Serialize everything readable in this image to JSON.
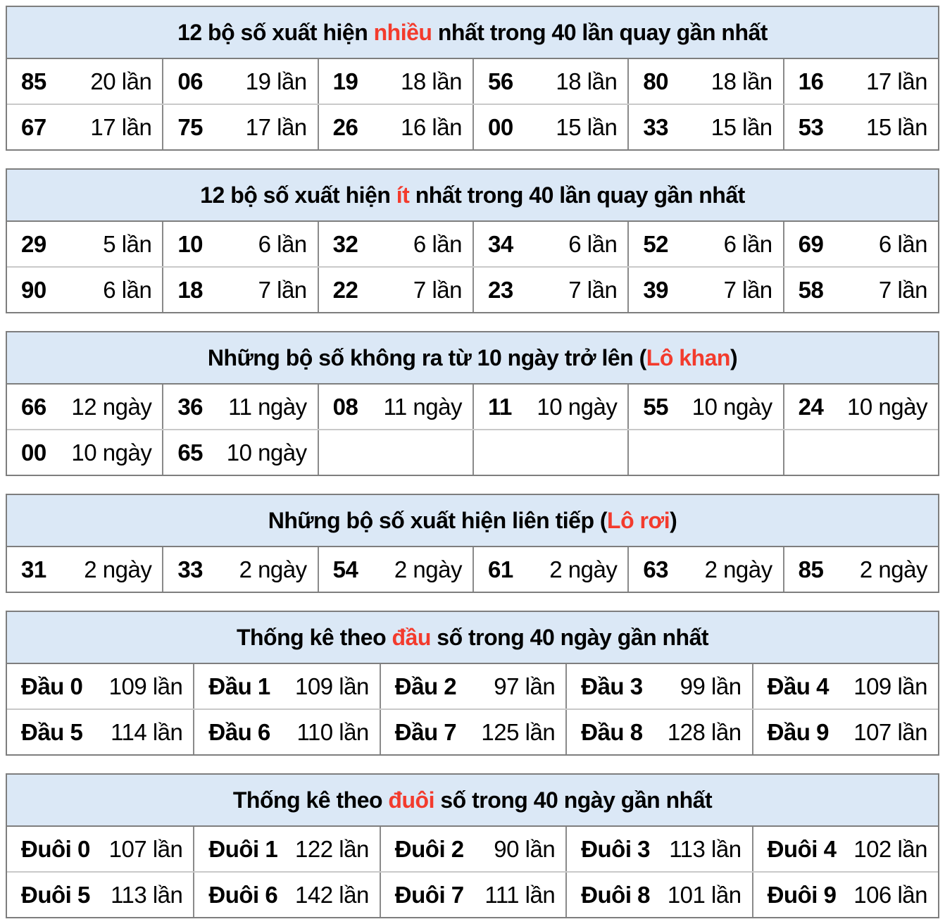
{
  "colors": {
    "header_bg": "#dbe8f6",
    "red_accent": "#f33b2d",
    "border_dark": "#7e7e7e",
    "border_mid": "#8a8a8a",
    "border_light": "#c9c9c9",
    "text": "#000000"
  },
  "tables": [
    {
      "name": "most-frequent",
      "title": {
        "pre": "12 bộ số xuất hiện ",
        "red": "nhiều",
        "post": " nhất trong 40 lần quay gần nhất"
      },
      "rows": [
        [
          {
            "label": "85",
            "value": "20 lần"
          },
          {
            "label": "06",
            "value": "19 lần"
          },
          {
            "label": "19",
            "value": "18 lần"
          },
          {
            "label": "56",
            "value": "18 lần"
          },
          {
            "label": "80",
            "value": "18 lần"
          },
          {
            "label": "16",
            "value": "17 lần"
          }
        ],
        [
          {
            "label": "67",
            "value": "17 lần"
          },
          {
            "label": "75",
            "value": "17 lần"
          },
          {
            "label": "26",
            "value": "16 lần"
          },
          {
            "label": "00",
            "value": "15 lần"
          },
          {
            "label": "33",
            "value": "15 lần"
          },
          {
            "label": "53",
            "value": "15 lần"
          }
        ]
      ]
    },
    {
      "name": "least-frequent",
      "title": {
        "pre": "12 bộ số xuất hiện ",
        "red": "ít",
        "post": " nhất trong 40 lần quay gần nhất"
      },
      "rows": [
        [
          {
            "label": "29",
            "value": "5 lần"
          },
          {
            "label": "10",
            "value": "6 lần"
          },
          {
            "label": "32",
            "value": "6 lần"
          },
          {
            "label": "34",
            "value": "6 lần"
          },
          {
            "label": "52",
            "value": "6 lần"
          },
          {
            "label": "69",
            "value": "6 lần"
          }
        ],
        [
          {
            "label": "90",
            "value": "6 lần"
          },
          {
            "label": "18",
            "value": "7 lần"
          },
          {
            "label": "22",
            "value": "7 lần"
          },
          {
            "label": "23",
            "value": "7 lần"
          },
          {
            "label": "39",
            "value": "7 lần"
          },
          {
            "label": "58",
            "value": "7 lần"
          }
        ]
      ]
    },
    {
      "name": "lo-khan",
      "title": {
        "pre": "Những bộ số không ra từ 10 ngày trở lên (",
        "red": "Lô khan",
        "post": ")"
      },
      "rows": [
        [
          {
            "label": "66",
            "value": "12 ngày"
          },
          {
            "label": "36",
            "value": "11 ngày"
          },
          {
            "label": "08",
            "value": "11 ngày"
          },
          {
            "label": "11",
            "value": "10 ngày"
          },
          {
            "label": "55",
            "value": "10 ngày"
          },
          {
            "label": "24",
            "value": "10 ngày"
          }
        ],
        [
          {
            "label": "00",
            "value": "10 ngày"
          },
          {
            "label": "65",
            "value": "10 ngày"
          },
          {
            "label": "",
            "value": ""
          },
          {
            "label": "",
            "value": ""
          },
          {
            "label": "",
            "value": ""
          },
          {
            "label": "",
            "value": ""
          }
        ]
      ]
    },
    {
      "name": "lo-roi",
      "title": {
        "pre": "Những bộ số xuất hiện liên tiếp (",
        "red": "Lô rơi",
        "post": ")"
      },
      "rows": [
        [
          {
            "label": "31",
            "value": "2 ngày"
          },
          {
            "label": "33",
            "value": "2 ngày"
          },
          {
            "label": "54",
            "value": "2 ngày"
          },
          {
            "label": "61",
            "value": "2 ngày"
          },
          {
            "label": "63",
            "value": "2 ngày"
          },
          {
            "label": "85",
            "value": "2 ngày"
          }
        ]
      ]
    },
    {
      "name": "dau-stats",
      "title": {
        "pre": "Thống kê theo ",
        "red": "đầu",
        "post": " số trong 40 ngày gần nhất"
      },
      "rows": [
        [
          {
            "label": "Đầu 0",
            "value": "109 lần"
          },
          {
            "label": "Đầu 1",
            "value": "109 lần"
          },
          {
            "label": "Đầu 2",
            "value": "97 lần"
          },
          {
            "label": "Đầu 3",
            "value": "99 lần"
          },
          {
            "label": "Đầu 4",
            "value": "109 lần"
          }
        ],
        [
          {
            "label": "Đầu 5",
            "value": "114 lần"
          },
          {
            "label": "Đầu 6",
            "value": "110 lần"
          },
          {
            "label": "Đầu 7",
            "value": "125 lần"
          },
          {
            "label": "Đầu 8",
            "value": "128 lần"
          },
          {
            "label": "Đầu 9",
            "value": "107 lần"
          }
        ]
      ]
    },
    {
      "name": "duoi-stats",
      "title": {
        "pre": "Thống kê theo ",
        "red": "đuôi",
        "post": " số trong 40 ngày gần nhất"
      },
      "rows": [
        [
          {
            "label": "Đuôi 0",
            "value": "107 lần"
          },
          {
            "label": "Đuôi 1",
            "value": "122 lần"
          },
          {
            "label": "Đuôi 2",
            "value": "90 lần"
          },
          {
            "label": "Đuôi 3",
            "value": "113 lần"
          },
          {
            "label": "Đuôi 4",
            "value": "102 lần"
          }
        ],
        [
          {
            "label": "Đuôi 5",
            "value": "113 lần"
          },
          {
            "label": "Đuôi 6",
            "value": "142 lần"
          },
          {
            "label": "Đuôi 7",
            "value": "111 lần"
          },
          {
            "label": "Đuôi 8",
            "value": "101 lần"
          },
          {
            "label": "Đuôi 9",
            "value": "106 lần"
          }
        ]
      ]
    }
  ]
}
